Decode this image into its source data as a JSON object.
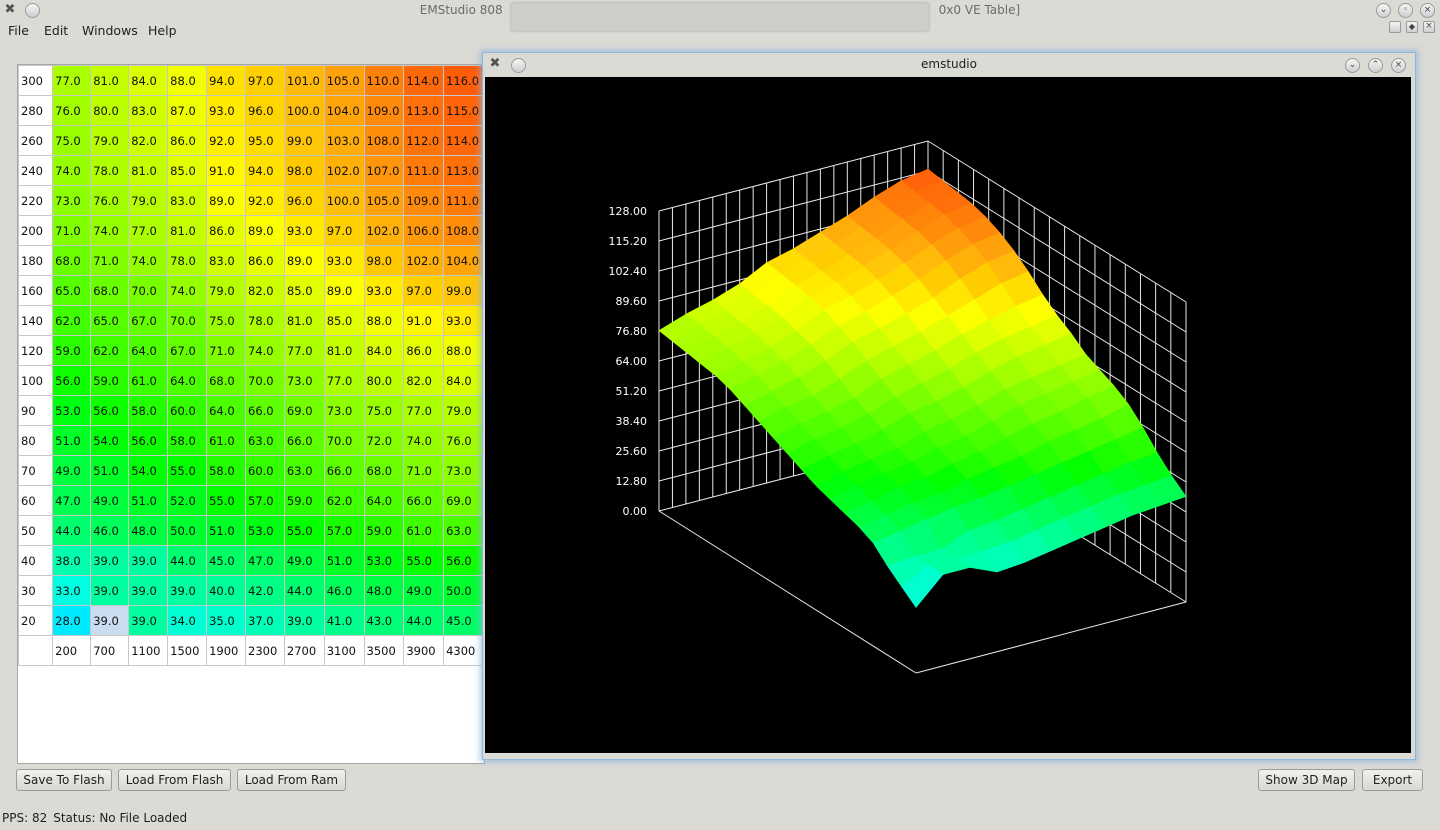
{
  "window": {
    "title_left": "EMStudio 808",
    "title_right": "0x0 VE Table]"
  },
  "menu": [
    "File",
    "Edit",
    "Windows",
    "Help"
  ],
  "ve_table": {
    "rpm_axis": [
      "200",
      "700",
      "1100",
      "1500",
      "1900",
      "2300",
      "2700",
      "3100",
      "3500",
      "3900",
      "4300"
    ],
    "rows": [
      {
        "load": "300",
        "values": [
          "77.0",
          "81.0",
          "84.0",
          "88.0",
          "94.0",
          "97.0",
          "101.0",
          "105.0",
          "110.0",
          "114.0",
          "116.0"
        ]
      },
      {
        "load": "280",
        "values": [
          "76.0",
          "80.0",
          "83.0",
          "87.0",
          "93.0",
          "96.0",
          "100.0",
          "104.0",
          "109.0",
          "113.0",
          "115.0"
        ]
      },
      {
        "load": "260",
        "values": [
          "75.0",
          "79.0",
          "82.0",
          "86.0",
          "92.0",
          "95.0",
          "99.0",
          "103.0",
          "108.0",
          "112.0",
          "114.0"
        ]
      },
      {
        "load": "240",
        "values": [
          "74.0",
          "78.0",
          "81.0",
          "85.0",
          "91.0",
          "94.0",
          "98.0",
          "102.0",
          "107.0",
          "111.0",
          "113.0"
        ]
      },
      {
        "load": "220",
        "values": [
          "73.0",
          "76.0",
          "79.0",
          "83.0",
          "89.0",
          "92.0",
          "96.0",
          "100.0",
          "105.0",
          "109.0",
          "111.0"
        ]
      },
      {
        "load": "200",
        "values": [
          "71.0",
          "74.0",
          "77.0",
          "81.0",
          "86.0",
          "89.0",
          "93.0",
          "97.0",
          "102.0",
          "106.0",
          "108.0"
        ]
      },
      {
        "load": "180",
        "values": [
          "68.0",
          "71.0",
          "74.0",
          "78.0",
          "83.0",
          "86.0",
          "89.0",
          "93.0",
          "98.0",
          "102.0",
          "104.0"
        ]
      },
      {
        "load": "160",
        "values": [
          "65.0",
          "68.0",
          "70.0",
          "74.0",
          "79.0",
          "82.0",
          "85.0",
          "89.0",
          "93.0",
          "97.0",
          "99.0"
        ]
      },
      {
        "load": "140",
        "values": [
          "62.0",
          "65.0",
          "67.0",
          "70.0",
          "75.0",
          "78.0",
          "81.0",
          "85.0",
          "88.0",
          "91.0",
          "93.0"
        ]
      },
      {
        "load": "120",
        "values": [
          "59.0",
          "62.0",
          "64.0",
          "67.0",
          "71.0",
          "74.0",
          "77.0",
          "81.0",
          "84.0",
          "86.0",
          "88.0"
        ]
      },
      {
        "load": "100",
        "values": [
          "56.0",
          "59.0",
          "61.0",
          "64.0",
          "68.0",
          "70.0",
          "73.0",
          "77.0",
          "80.0",
          "82.0",
          "84.0"
        ]
      },
      {
        "load": "90",
        "values": [
          "53.0",
          "56.0",
          "58.0",
          "60.0",
          "64.0",
          "66.0",
          "69.0",
          "73.0",
          "75.0",
          "77.0",
          "79.0"
        ]
      },
      {
        "load": "80",
        "values": [
          "51.0",
          "54.0",
          "56.0",
          "58.0",
          "61.0",
          "63.0",
          "66.0",
          "70.0",
          "72.0",
          "74.0",
          "76.0"
        ]
      },
      {
        "load": "70",
        "values": [
          "49.0",
          "51.0",
          "54.0",
          "55.0",
          "58.0",
          "60.0",
          "63.0",
          "66.0",
          "68.0",
          "71.0",
          "73.0"
        ]
      },
      {
        "load": "60",
        "values": [
          "47.0",
          "49.0",
          "51.0",
          "52.0",
          "55.0",
          "57.0",
          "59.0",
          "62.0",
          "64.0",
          "66.0",
          "69.0"
        ]
      },
      {
        "load": "50",
        "values": [
          "44.0",
          "46.0",
          "48.0",
          "50.0",
          "51.0",
          "53.0",
          "55.0",
          "57.0",
          "59.0",
          "61.0",
          "63.0"
        ]
      },
      {
        "load": "40",
        "values": [
          "38.0",
          "39.0",
          "39.0",
          "44.0",
          "45.0",
          "47.0",
          "49.0",
          "51.0",
          "53.0",
          "55.0",
          "56.0"
        ]
      },
      {
        "load": "30",
        "values": [
          "33.0",
          "39.0",
          "39.0",
          "39.0",
          "40.0",
          "42.0",
          "44.0",
          "46.0",
          "48.0",
          "49.0",
          "50.0"
        ]
      },
      {
        "load": "20",
        "values": [
          "28.0",
          "39.0",
          "39.0",
          "34.0",
          "35.0",
          "37.0",
          "39.0",
          "41.0",
          "43.0",
          "44.0",
          "45.0"
        ]
      }
    ],
    "selected_cell": {
      "row": 18,
      "col": 1
    }
  },
  "plot_window": {
    "title": "emstudio",
    "z_ticks": [
      "128.00",
      "115.20",
      "102.40",
      "89.60",
      "76.80",
      "64.00",
      "51.20",
      "38.40",
      "25.60",
      "12.80",
      "0.00"
    ]
  },
  "buttons": {
    "save_flash": "Save To Flash",
    "load_flash": "Load From Flash",
    "load_ram": "Load From Ram",
    "show_3d": "Show 3D Map",
    "export": "Export"
  },
  "status": {
    "pps": "PPS: 82",
    "text": "Status: No File Loaded"
  }
}
